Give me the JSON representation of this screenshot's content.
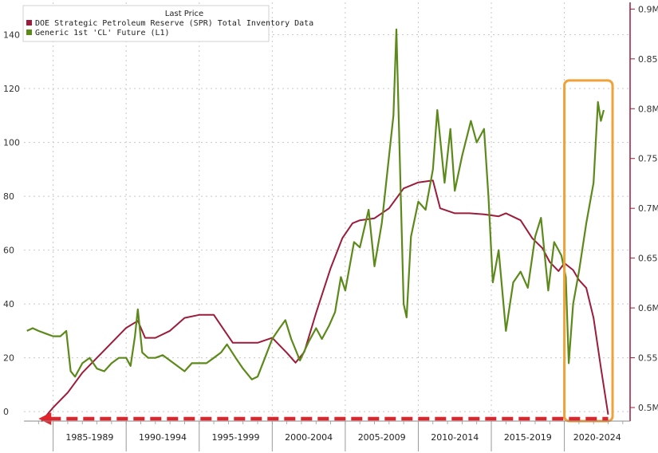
{
  "chart_data": {
    "type": "line",
    "legend": {
      "title": "Last Price",
      "placement": "top-left"
    },
    "left_axis": {
      "ticks": [
        0,
        20,
        40,
        60,
        80,
        100,
        120,
        140
      ],
      "tick_labels": [
        "0",
        "20",
        "40",
        "60",
        "80",
        "100",
        "120",
        "140"
      ],
      "range": [
        -3.5,
        152
      ]
    },
    "right_axis": {
      "ticks": [
        0.5,
        0.55,
        0.6,
        0.65,
        0.7,
        0.75,
        0.8,
        0.85,
        0.9
      ],
      "tick_labels": [
        "0.5M",
        "0.55M",
        "0.6M",
        "0.65M",
        "0.7M",
        "0.75M",
        "0.8M",
        "0.85M",
        "0.9M"
      ],
      "range": [
        0.4864,
        0.9067
      ]
    },
    "x_range": [
      1983.0,
      2024.5
    ],
    "categories": [
      "1985-1989",
      "1990-1994",
      "1995-1999",
      "2000-2004",
      "2005-2009",
      "2010-2014",
      "2015-2019",
      "2020-2024"
    ],
    "grid": true,
    "series": [
      {
        "name": "DOE Strategic Petroleum Reserve (SPR) Total Inventory Data",
        "color": "#9c1c3b",
        "axis": "right",
        "points": [
          [
            1984.2,
            0.486
          ],
          [
            1985.0,
            0.5
          ],
          [
            1986.0,
            0.515
          ],
          [
            1987.0,
            0.535
          ],
          [
            1988.0,
            0.55
          ],
          [
            1989.0,
            0.565
          ],
          [
            1990.0,
            0.58
          ],
          [
            1990.8,
            0.587
          ],
          [
            1991.3,
            0.57
          ],
          [
            1992.0,
            0.57
          ],
          [
            1993.0,
            0.577
          ],
          [
            1994.0,
            0.59
          ],
          [
            1995.0,
            0.593
          ],
          [
            1996.0,
            0.593
          ],
          [
            1996.6,
            0.58
          ],
          [
            1997.3,
            0.565
          ],
          [
            1998.0,
            0.565
          ],
          [
            1999.0,
            0.565
          ],
          [
            2000.0,
            0.57
          ],
          [
            2001.0,
            0.555
          ],
          [
            2001.6,
            0.545
          ],
          [
            2002.2,
            0.556
          ],
          [
            2003.0,
            0.595
          ],
          [
            2004.0,
            0.64
          ],
          [
            2004.8,
            0.67
          ],
          [
            2005.5,
            0.685
          ],
          [
            2006.0,
            0.688
          ],
          [
            2007.0,
            0.69
          ],
          [
            2008.0,
            0.7
          ],
          [
            2009.0,
            0.72
          ],
          [
            2010.0,
            0.726
          ],
          [
            2011.0,
            0.728
          ],
          [
            2011.5,
            0.7
          ],
          [
            2012.5,
            0.695
          ],
          [
            2013.5,
            0.695
          ],
          [
            2014.5,
            0.694
          ],
          [
            2015.5,
            0.692
          ],
          [
            2016.0,
            0.695
          ],
          [
            2017.0,
            0.688
          ],
          [
            2017.8,
            0.67
          ],
          [
            2018.5,
            0.66
          ],
          [
            2019.0,
            0.646
          ],
          [
            2019.6,
            0.637
          ],
          [
            2020.0,
            0.645
          ],
          [
            2020.6,
            0.638
          ],
          [
            2021.0,
            0.628
          ],
          [
            2021.5,
            0.62
          ],
          [
            2022.0,
            0.59
          ],
          [
            2022.5,
            0.54
          ],
          [
            2023.0,
            0.493
          ]
        ]
      },
      {
        "name": "Generic 1st 'CL' Future  (L1)",
        "color": "#5c8a1a",
        "axis": "left",
        "points": [
          [
            1983.2,
            30
          ],
          [
            1983.6,
            31
          ],
          [
            1984.0,
            30
          ],
          [
            1984.5,
            29
          ],
          [
            1985.0,
            28
          ],
          [
            1985.5,
            28
          ],
          [
            1985.9,
            30
          ],
          [
            1986.2,
            15
          ],
          [
            1986.5,
            13
          ],
          [
            1987.0,
            18
          ],
          [
            1987.5,
            20
          ],
          [
            1988.0,
            16
          ],
          [
            1988.5,
            15
          ],
          [
            1989.0,
            18
          ],
          [
            1989.5,
            20
          ],
          [
            1990.0,
            20
          ],
          [
            1990.3,
            17
          ],
          [
            1990.6,
            28
          ],
          [
            1990.8,
            38
          ],
          [
            1991.1,
            22
          ],
          [
            1991.5,
            20
          ],
          [
            1992.0,
            20
          ],
          [
            1992.5,
            21
          ],
          [
            1993.0,
            19
          ],
          [
            1993.5,
            17
          ],
          [
            1994.0,
            15
          ],
          [
            1994.5,
            18
          ],
          [
            1995.0,
            18
          ],
          [
            1995.5,
            18
          ],
          [
            1996.0,
            20
          ],
          [
            1996.5,
            22
          ],
          [
            1996.9,
            25
          ],
          [
            1997.5,
            20
          ],
          [
            1998.0,
            16
          ],
          [
            1998.6,
            12
          ],
          [
            1999.0,
            13
          ],
          [
            1999.5,
            20
          ],
          [
            2000.0,
            27
          ],
          [
            2000.5,
            31
          ],
          [
            2000.9,
            34
          ],
          [
            2001.3,
            27
          ],
          [
            2001.9,
            19
          ],
          [
            2002.5,
            26
          ],
          [
            2003.0,
            31
          ],
          [
            2003.4,
            27
          ],
          [
            2003.9,
            32
          ],
          [
            2004.3,
            37
          ],
          [
            2004.7,
            50
          ],
          [
            2005.0,
            45
          ],
          [
            2005.6,
            63
          ],
          [
            2006.0,
            61
          ],
          [
            2006.6,
            75
          ],
          [
            2007.0,
            54
          ],
          [
            2007.5,
            70
          ],
          [
            2007.9,
            90
          ],
          [
            2008.3,
            110
          ],
          [
            2008.5,
            142
          ],
          [
            2008.8,
            80
          ],
          [
            2009.0,
            40
          ],
          [
            2009.2,
            35
          ],
          [
            2009.5,
            65
          ],
          [
            2010.0,
            78
          ],
          [
            2010.5,
            75
          ],
          [
            2011.0,
            90
          ],
          [
            2011.3,
            112
          ],
          [
            2011.8,
            85
          ],
          [
            2012.2,
            105
          ],
          [
            2012.5,
            82
          ],
          [
            2013.0,
            95
          ],
          [
            2013.6,
            108
          ],
          [
            2014.0,
            100
          ],
          [
            2014.5,
            105
          ],
          [
            2014.8,
            80
          ],
          [
            2015.1,
            48
          ],
          [
            2015.5,
            60
          ],
          [
            2016.0,
            30
          ],
          [
            2016.5,
            48
          ],
          [
            2017.0,
            52
          ],
          [
            2017.5,
            46
          ],
          [
            2018.0,
            65
          ],
          [
            2018.4,
            72
          ],
          [
            2018.9,
            45
          ],
          [
            2019.3,
            63
          ],
          [
            2019.8,
            58
          ],
          [
            2020.1,
            50
          ],
          [
            2020.3,
            18
          ],
          [
            2020.6,
            40
          ],
          [
            2021.0,
            52
          ],
          [
            2021.5,
            70
          ],
          [
            2022.0,
            85
          ],
          [
            2022.3,
            115
          ],
          [
            2022.5,
            108
          ],
          [
            2022.7,
            112
          ]
        ]
      }
    ],
    "annotations": [
      {
        "type": "box",
        "color": "#f0a23a",
        "x_range": [
          2020.0,
          2023.3
        ],
        "y_range": [
          -3.5,
          123
        ]
      },
      {
        "type": "dashed-arrow",
        "color": "#e0242b",
        "direction": "left",
        "x_range": [
          1984.0,
          2023.0
        ],
        "y": -2.6
      }
    ]
  }
}
